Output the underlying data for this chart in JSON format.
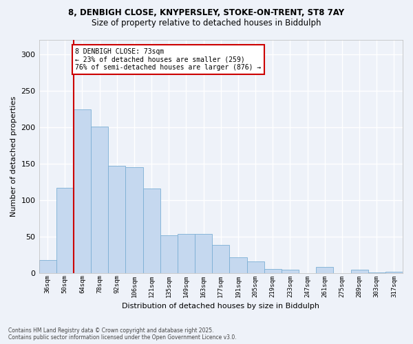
{
  "title_line1": "8, DENBIGH CLOSE, KNYPERSLEY, STOKE-ON-TRENT, ST8 7AY",
  "title_line2": "Size of property relative to detached houses in Biddulph",
  "xlabel": "Distribution of detached houses by size in Biddulph",
  "ylabel": "Number of detached properties",
  "bar_color": "#c5d8ef",
  "bar_edge_color": "#7bafd4",
  "categories": [
    "36sqm",
    "50sqm",
    "64sqm",
    "78sqm",
    "92sqm",
    "106sqm",
    "121sqm",
    "135sqm",
    "149sqm",
    "163sqm",
    "177sqm",
    "191sqm",
    "205sqm",
    "219sqm",
    "233sqm",
    "247sqm",
    "261sqm",
    "275sqm",
    "289sqm",
    "303sqm",
    "317sqm"
  ],
  "values": [
    18,
    117,
    224,
    201,
    147,
    145,
    116,
    52,
    53,
    53,
    38,
    21,
    16,
    5,
    4,
    0,
    8,
    0,
    4,
    1,
    2
  ],
  "ylim": [
    0,
    320
  ],
  "yticks": [
    0,
    50,
    100,
    150,
    200,
    250,
    300
  ],
  "vline_x_index": 1.5,
  "annotation_text": "8 DENBIGH CLOSE: 73sqm\n← 23% of detached houses are smaller (259)\n76% of semi-detached houses are larger (876) →",
  "annotation_box_color": "#ffffff",
  "annotation_edge_color": "#cc0000",
  "vline_color": "#cc0000",
  "background_color": "#eef2f9",
  "grid_color": "#ffffff",
  "footer_text": "Contains HM Land Registry data © Crown copyright and database right 2025.\nContains public sector information licensed under the Open Government Licence v3.0."
}
